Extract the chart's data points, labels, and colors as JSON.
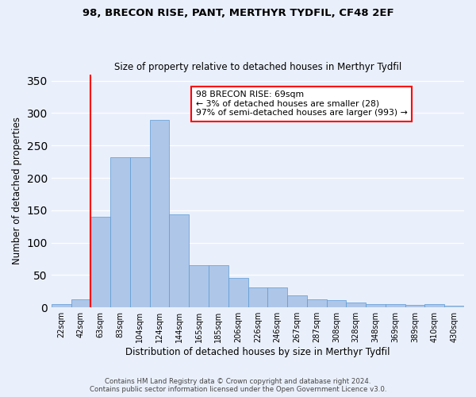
{
  "title": "98, BRECON RISE, PANT, MERTHYR TYDFIL, CF48 2EF",
  "subtitle": "Size of property relative to detached houses in Merthyr Tydfil",
  "xlabel": "Distribution of detached houses by size in Merthyr Tydfil",
  "ylabel": "Number of detached properties",
  "bar_labels": [
    "22sqm",
    "42sqm",
    "63sqm",
    "83sqm",
    "104sqm",
    "124sqm",
    "144sqm",
    "165sqm",
    "185sqm",
    "206sqm",
    "226sqm",
    "246sqm",
    "267sqm",
    "287sqm",
    "308sqm",
    "328sqm",
    "348sqm",
    "369sqm",
    "389sqm",
    "410sqm",
    "430sqm"
  ],
  "bar_values": [
    5,
    13,
    140,
    232,
    232,
    289,
    144,
    65,
    65,
    46,
    31,
    31,
    19,
    13,
    11,
    7,
    5,
    5,
    4,
    5,
    3
  ],
  "bar_color": "#aec6e8",
  "bar_edge_color": "#5a9ad5",
  "vline_color": "red",
  "vline_index": 2,
  "annotation_line1": "98 BRECON RISE: 69sqm",
  "annotation_line2": "← 3% of detached houses are smaller (28)",
  "annotation_line3": "97% of semi-detached houses are larger (993) →",
  "annotation_box_color": "white",
  "annotation_box_edge": "red",
  "ylim": [
    0,
    360
  ],
  "yticks": [
    0,
    50,
    100,
    150,
    200,
    250,
    300,
    350
  ],
  "footer_line1": "Contains HM Land Registry data © Crown copyright and database right 2024.",
  "footer_line2": "Contains public sector information licensed under the Open Government Licence v3.0.",
  "bg_color": "#eaf0fb",
  "grid_color": "white"
}
